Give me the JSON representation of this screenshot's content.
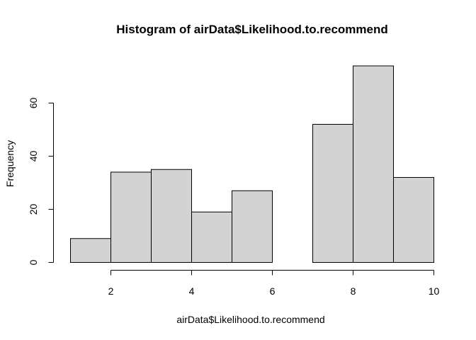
{
  "chart_data": {
    "type": "bar",
    "subtype": "histogram",
    "title": "Histogram of airData$Likelihood.to.recommend",
    "xlabel": "airData$Likelihood.to.recommend",
    "ylabel": "Frequency",
    "bins": [
      {
        "start": 1,
        "end": 2,
        "count": 9
      },
      {
        "start": 2,
        "end": 3,
        "count": 34
      },
      {
        "start": 3,
        "end": 4,
        "count": 35
      },
      {
        "start": 4,
        "end": 5,
        "count": 19
      },
      {
        "start": 5,
        "end": 6,
        "count": 27
      },
      {
        "start": 6,
        "end": 7,
        "count": 0
      },
      {
        "start": 7,
        "end": 8,
        "count": 52
      },
      {
        "start": 8,
        "end": 9,
        "count": 74
      },
      {
        "start": 9,
        "end": 10,
        "count": 32
      }
    ],
    "x_ticks": [
      "2",
      "4",
      "6",
      "8",
      "10"
    ],
    "y_ticks": [
      "0",
      "20",
      "40",
      "60"
    ],
    "xlim": [
      1,
      10
    ],
    "ylim": [
      0,
      74
    ],
    "grid": false,
    "bar_color": "#d3d3d3",
    "border_color": "#000000"
  }
}
